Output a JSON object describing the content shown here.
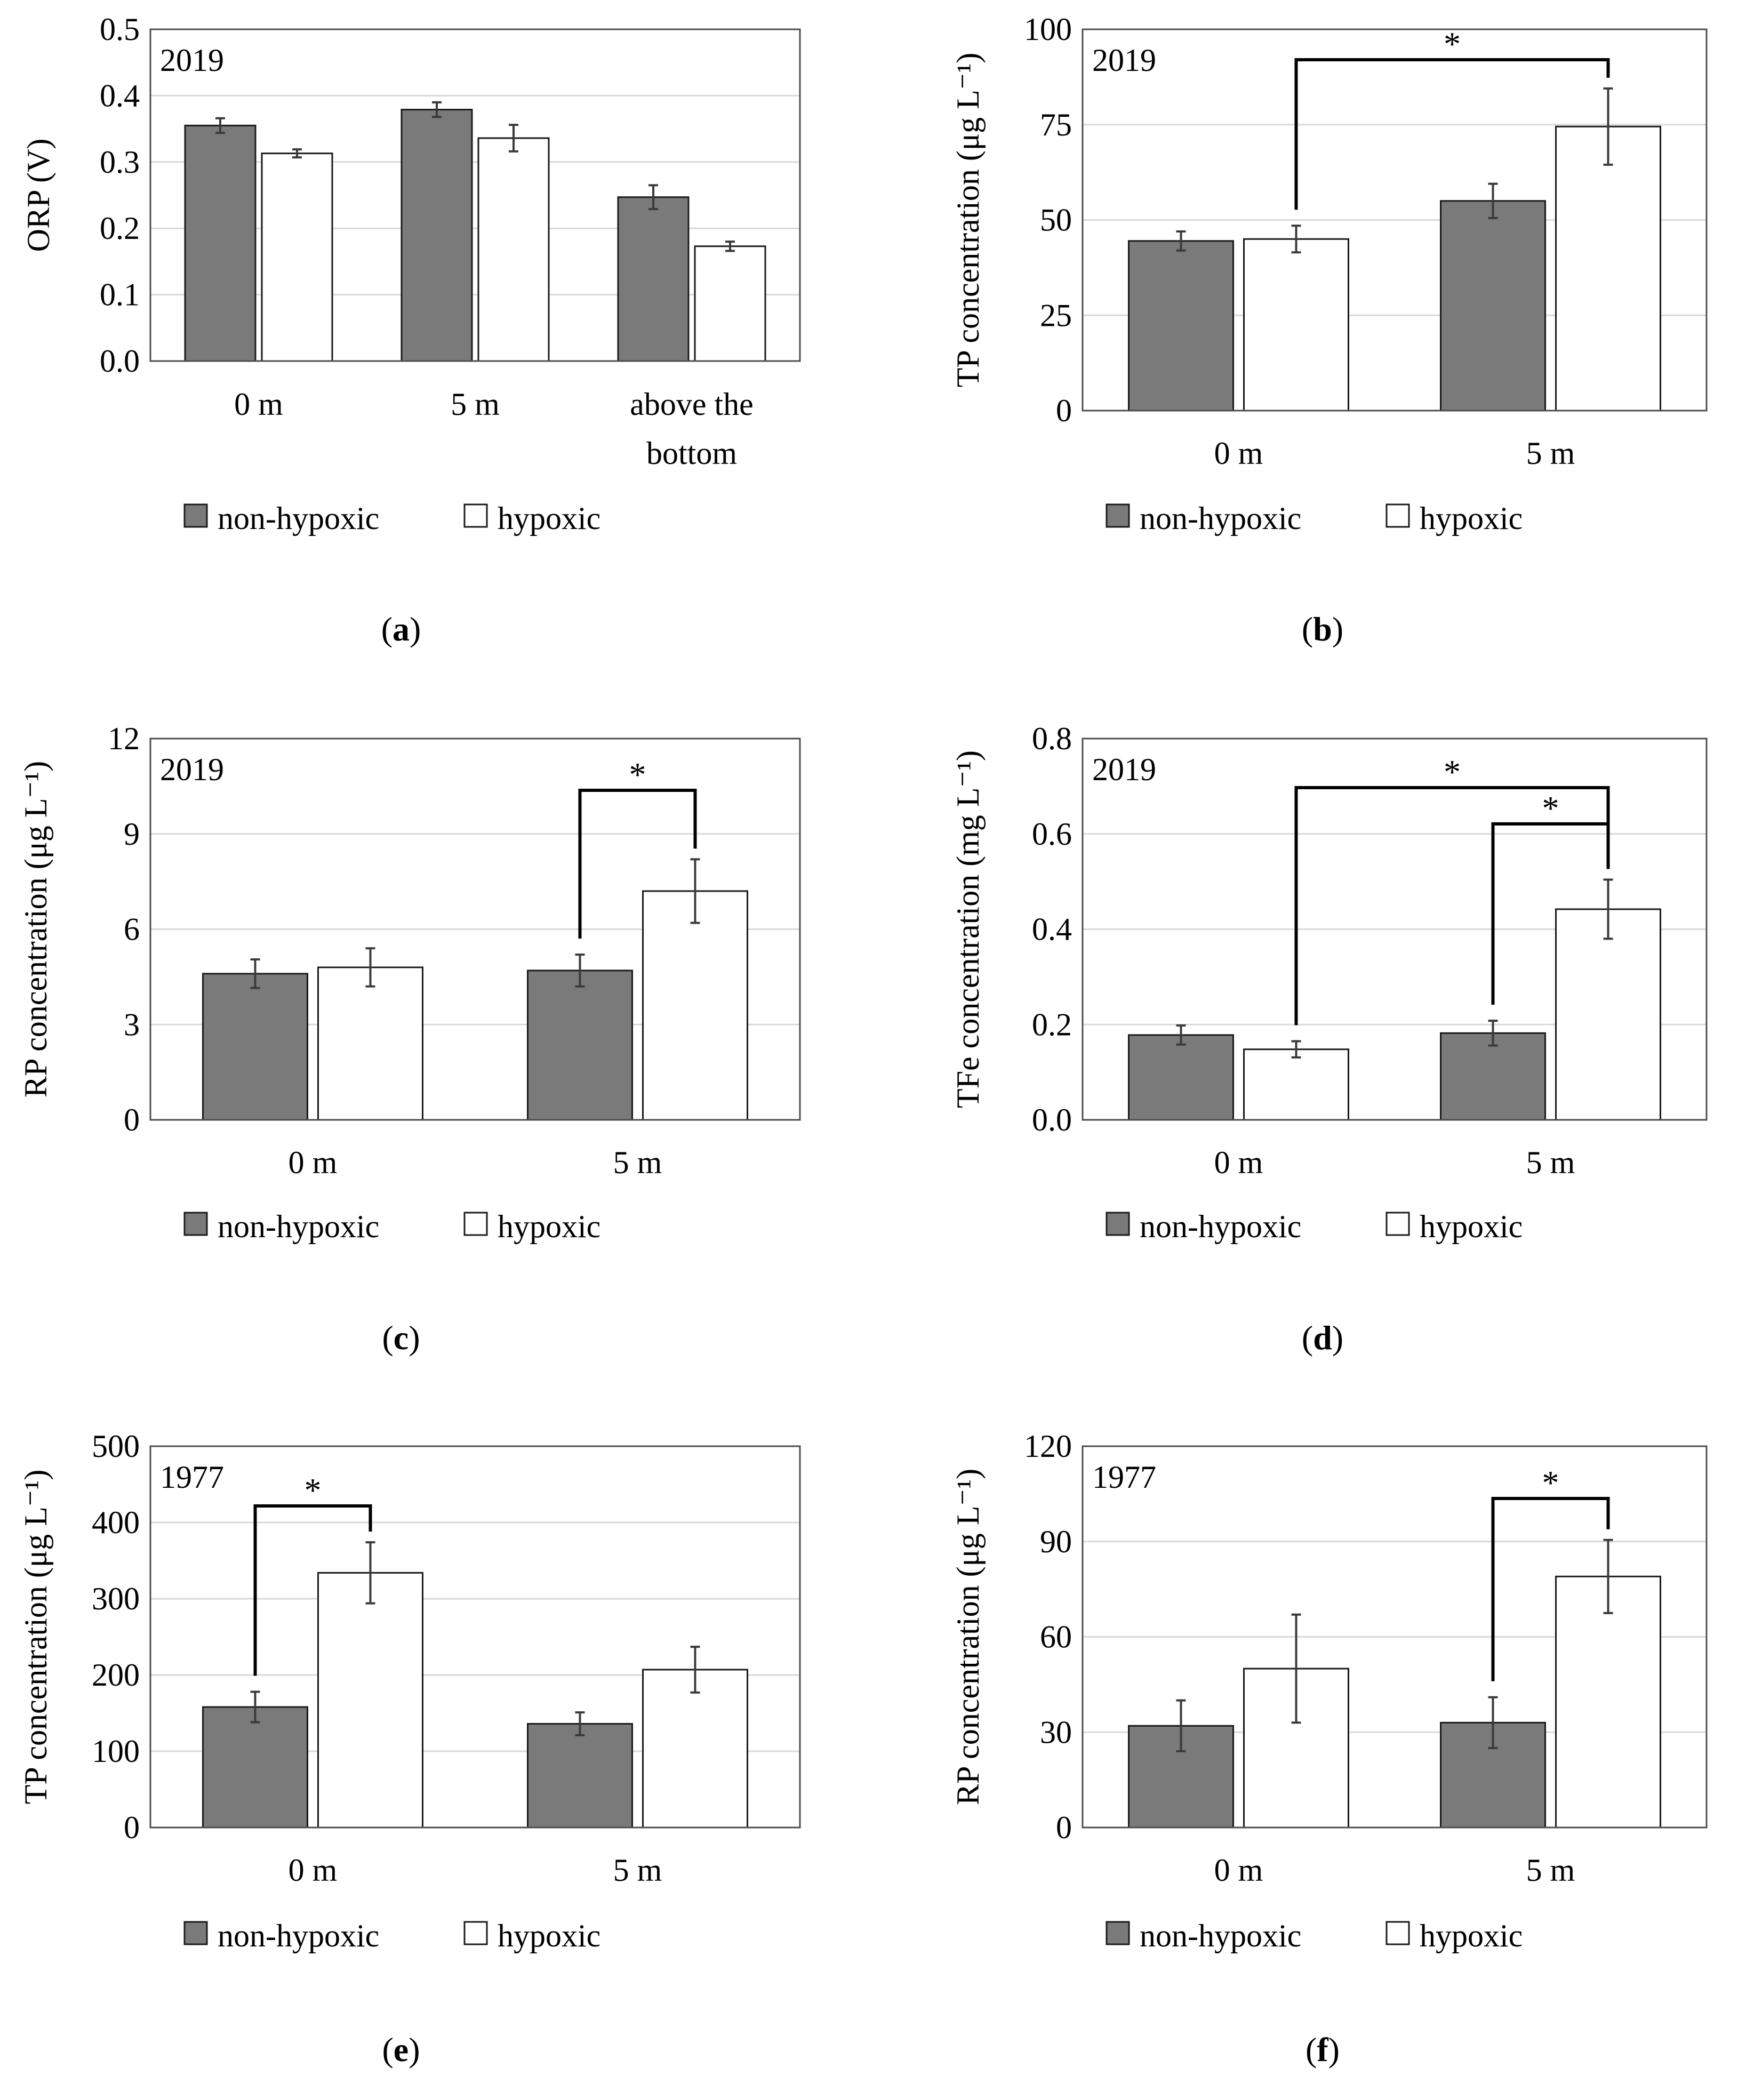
{
  "figure": {
    "legend_labels": [
      "non-hypoxic",
      "hypoxic"
    ],
    "colors": {
      "non_hypoxic": "#7a7a7a",
      "hypoxic": "#ffffff",
      "bar_stroke": "#1a1a1a",
      "grid": "#d9d9d9",
      "frame": "#4d4d4d",
      "bracket": "#000000",
      "error_bar": "#3a3a3a"
    }
  },
  "chart_data": [
    {
      "panel": "a",
      "panel_label": "(a)",
      "type": "bar",
      "year": "2019",
      "title": "",
      "xlabel": "",
      "ylabel": "ORP (V)",
      "ylim": [
        0,
        0.5
      ],
      "yticks": [
        0,
        0.1,
        0.2,
        0.3,
        0.4,
        0.5
      ],
      "ytick_labels": [
        "0.0",
        "0.1",
        "0.2",
        "0.3",
        "0.4",
        "0.5"
      ],
      "categories": [
        [
          "0 m"
        ],
        [
          "5 m"
        ],
        [
          "above the",
          "bottom"
        ]
      ],
      "series": [
        {
          "name": "non-hypoxic",
          "values": [
            0.355,
            0.379,
            0.247
          ],
          "errors": [
            0.011,
            0.011,
            0.018
          ]
        },
        {
          "name": "hypoxic",
          "values": [
            0.313,
            0.336,
            0.173
          ],
          "errors": [
            0.006,
            0.02,
            0.007
          ]
        }
      ],
      "brackets": [],
      "legend": "bottom",
      "grid": true
    },
    {
      "panel": "b",
      "panel_label": "(b)",
      "type": "bar",
      "year": "2019",
      "title": "",
      "xlabel": "",
      "ylabel": "TP concentration (μg L⁻¹)",
      "ylim": [
        0,
        100
      ],
      "yticks": [
        0,
        25,
        50,
        75,
        100
      ],
      "ytick_labels": [
        "0",
        "25",
        "50",
        "75",
        "100"
      ],
      "categories": [
        [
          "0 m"
        ],
        [
          "5 m"
        ]
      ],
      "series": [
        {
          "name": "non-hypoxic",
          "values": [
            44.5,
            55.0
          ],
          "errors": [
            2.5,
            4.5
          ]
        },
        {
          "name": "hypoxic",
          "values": [
            45.0,
            74.5
          ],
          "errors": [
            3.5,
            10.0
          ]
        }
      ],
      "brackets": [
        {
          "from": [
            0,
            1
          ],
          "to": [
            1,
            1
          ],
          "label": "*"
        }
      ],
      "legend": "bottom",
      "grid": true
    },
    {
      "panel": "c",
      "panel_label": "(c)",
      "type": "bar",
      "year": "2019",
      "title": "",
      "xlabel": "",
      "ylabel": "RP concentration (μg L⁻¹)",
      "ylim": [
        0,
        12
      ],
      "yticks": [
        0,
        3,
        6,
        9,
        12
      ],
      "ytick_labels": [
        "0",
        "3",
        "6",
        "9",
        "12"
      ],
      "categories": [
        [
          "0 m"
        ],
        [
          "5 m"
        ]
      ],
      "series": [
        {
          "name": "non-hypoxic",
          "values": [
            4.6,
            4.7
          ],
          "errors": [
            0.45,
            0.5
          ]
        },
        {
          "name": "hypoxic",
          "values": [
            4.8,
            7.2
          ],
          "errors": [
            0.6,
            1.0
          ]
        }
      ],
      "brackets": [
        {
          "from": [
            1,
            0
          ],
          "to": [
            1,
            1
          ],
          "label": "*"
        }
      ],
      "legend": "bottom",
      "grid": true
    },
    {
      "panel": "d",
      "panel_label": "(d)",
      "type": "bar",
      "year": "2019",
      "title": "",
      "xlabel": "",
      "ylabel": "TFe concentration (mg L⁻¹)",
      "ylim": [
        0,
        0.8
      ],
      "yticks": [
        0,
        0.2,
        0.4,
        0.6,
        0.8
      ],
      "ytick_labels": [
        "0.0",
        "0.2",
        "0.4",
        "0.6",
        "0.8"
      ],
      "categories": [
        [
          "0 m"
        ],
        [
          "5 m"
        ]
      ],
      "series": [
        {
          "name": "non-hypoxic",
          "values": [
            0.178,
            0.182
          ],
          "errors": [
            0.02,
            0.026
          ]
        },
        {
          "name": "hypoxic",
          "values": [
            0.148,
            0.442
          ],
          "errors": [
            0.017,
            0.062
          ]
        }
      ],
      "brackets": [
        {
          "from": [
            0,
            1
          ],
          "to": [
            1,
            1
          ],
          "label": "*"
        },
        {
          "from": [
            1,
            0
          ],
          "to": [
            1,
            1
          ],
          "label": "*"
        }
      ],
      "legend": "bottom",
      "grid": true
    },
    {
      "panel": "e",
      "panel_label": "(e)",
      "type": "bar",
      "year": "1977",
      "title": "",
      "xlabel": "",
      "ylabel": "TP concentration (μg L⁻¹)",
      "ylim": [
        0,
        500
      ],
      "yticks": [
        0,
        100,
        200,
        300,
        400,
        500
      ],
      "ytick_labels": [
        "0",
        "100",
        "200",
        "300",
        "400",
        "500"
      ],
      "categories": [
        [
          "0 m"
        ],
        [
          "5 m"
        ]
      ],
      "series": [
        {
          "name": "non-hypoxic",
          "values": [
            158,
            136
          ],
          "errors": [
            20,
            15
          ]
        },
        {
          "name": "hypoxic",
          "values": [
            334,
            207
          ],
          "errors": [
            40,
            30
          ]
        }
      ],
      "brackets": [
        {
          "from": [
            0,
            0
          ],
          "to": [
            0,
            1
          ],
          "label": "*"
        }
      ],
      "legend": "bottom",
      "grid": true
    },
    {
      "panel": "f",
      "panel_label": "(f)",
      "type": "bar",
      "year": "1977",
      "title": "",
      "xlabel": "",
      "ylabel": "RP concentration (μg L⁻¹)",
      "ylim": [
        0,
        120
      ],
      "yticks": [
        0,
        30,
        60,
        90,
        120
      ],
      "ytick_labels": [
        "0",
        "30",
        "60",
        "90",
        "120"
      ],
      "categories": [
        [
          "0 m"
        ],
        [
          "5 m"
        ]
      ],
      "series": [
        {
          "name": "non-hypoxic",
          "values": [
            32,
            33
          ],
          "errors": [
            8,
            8
          ]
        },
        {
          "name": "hypoxic",
          "values": [
            50,
            79
          ],
          "errors": [
            17,
            11.5
          ]
        }
      ],
      "brackets": [
        {
          "from": [
            1,
            0
          ],
          "to": [
            1,
            1
          ],
          "label": "*"
        }
      ],
      "legend": "bottom",
      "grid": true
    }
  ]
}
